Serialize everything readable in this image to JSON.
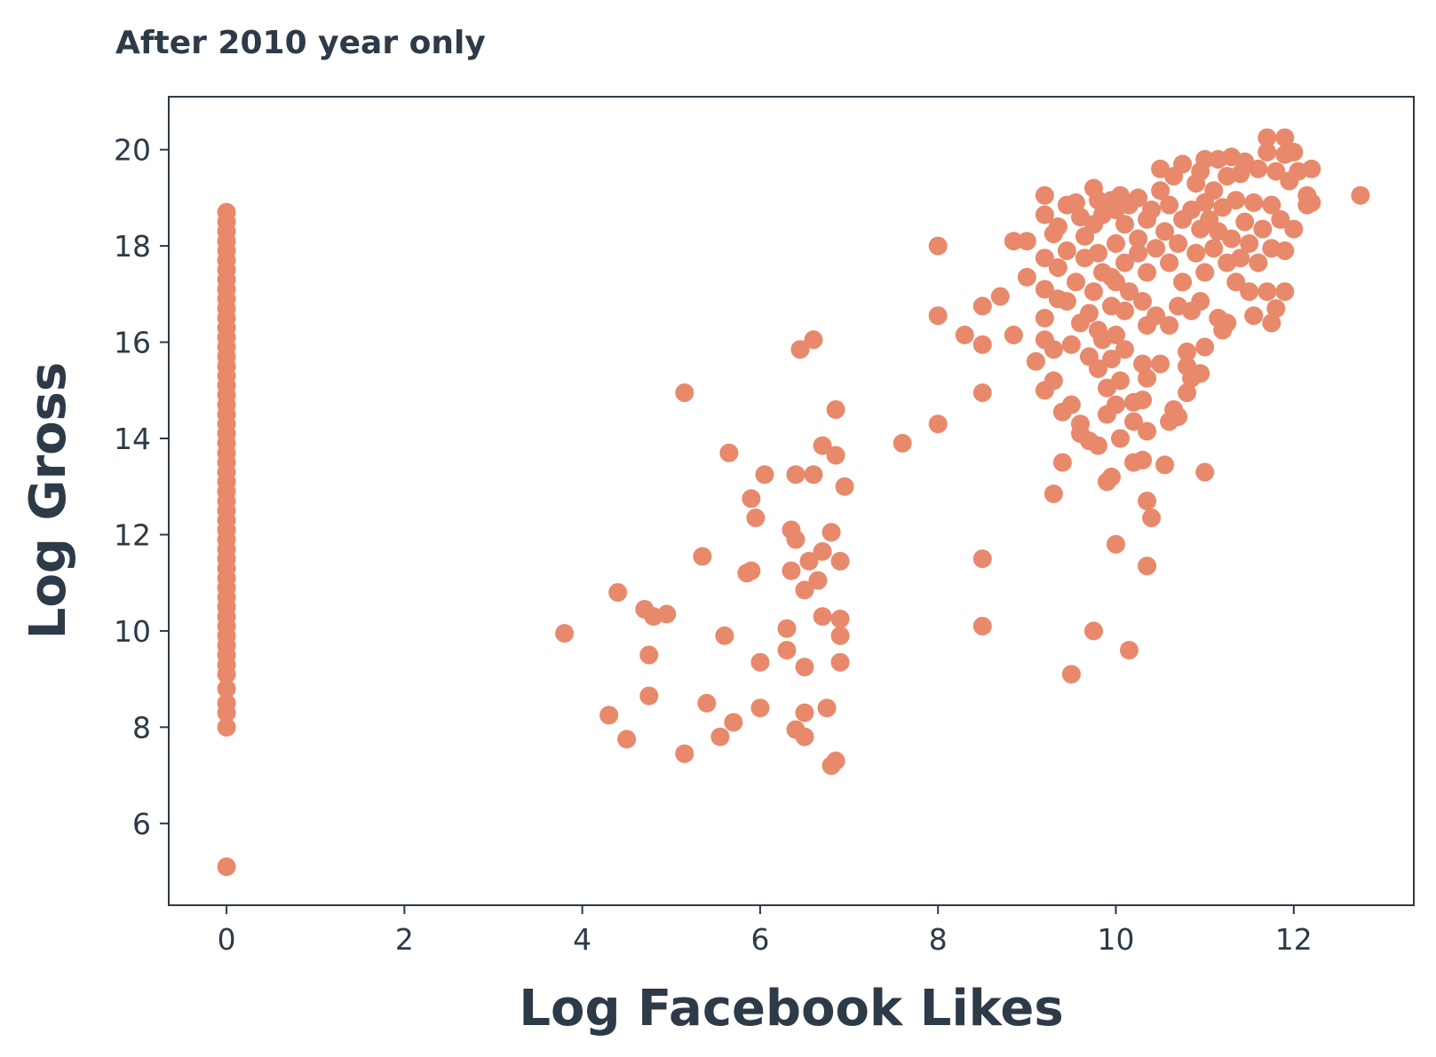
{
  "chart_data": {
    "type": "scatter",
    "title": "After 2010 year only",
    "xlabel": "Log Facebook Likes",
    "ylabel": "Log Gross",
    "xlim": [
      -0.65,
      13.35
    ],
    "ylim": [
      4.3,
      21.1
    ],
    "xticks": [
      0,
      2,
      4,
      6,
      8,
      10,
      12
    ],
    "yticks": [
      6,
      8,
      10,
      12,
      14,
      16,
      18,
      20
    ],
    "grid": false,
    "legend": "none",
    "marker_color": "#e8896b",
    "series": [
      {
        "points": [
          [
            0,
            18.7
          ],
          [
            0,
            18.5
          ],
          [
            0,
            18.3
          ],
          [
            0,
            18.1
          ],
          [
            0,
            17.9
          ],
          [
            0,
            17.7
          ],
          [
            0,
            17.5
          ],
          [
            0,
            17.3
          ],
          [
            0,
            17.1
          ],
          [
            0,
            16.9
          ],
          [
            0,
            16.7
          ],
          [
            0,
            16.5
          ],
          [
            0,
            16.3
          ],
          [
            0,
            16.1
          ],
          [
            0,
            15.9
          ],
          [
            0,
            15.7
          ],
          [
            0,
            15.5
          ],
          [
            0,
            15.3
          ],
          [
            0,
            15.1
          ],
          [
            0,
            14.9
          ],
          [
            0,
            14.7
          ],
          [
            0,
            14.5
          ],
          [
            0,
            14.3
          ],
          [
            0,
            14.1
          ],
          [
            0,
            13.9
          ],
          [
            0,
            13.7
          ],
          [
            0,
            13.5
          ],
          [
            0,
            13.3
          ],
          [
            0,
            13.1
          ],
          [
            0,
            12.9
          ],
          [
            0,
            12.7
          ],
          [
            0,
            12.5
          ],
          [
            0,
            12.3
          ],
          [
            0,
            12.1
          ],
          [
            0,
            11.9
          ],
          [
            0,
            11.7
          ],
          [
            0,
            11.5
          ],
          [
            0,
            11.3
          ],
          [
            0,
            11.1
          ],
          [
            0,
            10.9
          ],
          [
            0,
            10.7
          ],
          [
            0,
            10.5
          ],
          [
            0,
            10.3
          ],
          [
            0,
            10.1
          ],
          [
            0,
            9.9
          ],
          [
            0,
            9.7
          ],
          [
            0,
            9.5
          ],
          [
            0,
            9.3
          ],
          [
            0,
            9.1
          ],
          [
            0,
            8.8
          ],
          [
            0,
            8.5
          ],
          [
            0,
            8.3
          ],
          [
            0,
            8.0
          ],
          [
            0,
            5.1
          ],
          [
            3.8,
            9.95
          ],
          [
            4.3,
            8.25
          ],
          [
            4.4,
            10.8
          ],
          [
            4.5,
            7.75
          ],
          [
            4.7,
            10.45
          ],
          [
            4.75,
            9.5
          ],
          [
            4.75,
            8.65
          ],
          [
            4.8,
            10.3
          ],
          [
            4.95,
            10.35
          ],
          [
            5.15,
            14.95
          ],
          [
            5.15,
            7.45
          ],
          [
            5.35,
            11.55
          ],
          [
            5.4,
            8.5
          ],
          [
            5.55,
            7.8
          ],
          [
            5.6,
            9.9
          ],
          [
            5.65,
            13.7
          ],
          [
            5.7,
            8.1
          ],
          [
            5.85,
            11.2
          ],
          [
            5.9,
            11.25
          ],
          [
            5.9,
            12.75
          ],
          [
            5.95,
            12.35
          ],
          [
            6.0,
            9.35
          ],
          [
            6.0,
            8.4
          ],
          [
            6.05,
            13.25
          ],
          [
            6.3,
            10.05
          ],
          [
            6.3,
            9.6
          ],
          [
            6.35,
            12.1
          ],
          [
            6.35,
            11.25
          ],
          [
            6.4,
            11.9
          ],
          [
            6.4,
            13.25
          ],
          [
            6.4,
            7.95
          ],
          [
            6.45,
            15.85
          ],
          [
            6.5,
            8.3
          ],
          [
            6.5,
            7.8
          ],
          [
            6.5,
            9.25
          ],
          [
            6.5,
            10.85
          ],
          [
            6.55,
            11.45
          ],
          [
            6.6,
            13.25
          ],
          [
            6.6,
            16.05
          ],
          [
            6.65,
            11.05
          ],
          [
            6.7,
            11.65
          ],
          [
            6.7,
            10.3
          ],
          [
            6.7,
            13.85
          ],
          [
            6.75,
            8.4
          ],
          [
            6.8,
            12.05
          ],
          [
            6.8,
            7.2
          ],
          [
            6.85,
            7.3
          ],
          [
            6.85,
            13.65
          ],
          [
            6.85,
            14.6
          ],
          [
            6.9,
            9.9
          ],
          [
            6.9,
            10.25
          ],
          [
            6.9,
            11.45
          ],
          [
            6.9,
            9.35
          ],
          [
            6.95,
            13.0
          ],
          [
            7.6,
            13.9
          ],
          [
            8.0,
            18.0
          ],
          [
            8.0,
            16.55
          ],
          [
            8.0,
            14.3
          ],
          [
            8.3,
            16.15
          ],
          [
            8.5,
            16.75
          ],
          [
            8.5,
            15.95
          ],
          [
            8.5,
            14.95
          ],
          [
            8.5,
            11.5
          ],
          [
            8.5,
            10.1
          ],
          [
            8.7,
            16.95
          ],
          [
            8.85,
            18.1
          ],
          [
            8.85,
            16.15
          ],
          [
            9.0,
            18.1
          ],
          [
            9.0,
            17.35
          ],
          [
            9.1,
            15.6
          ],
          [
            9.2,
            19.05
          ],
          [
            9.2,
            18.65
          ],
          [
            9.2,
            17.75
          ],
          [
            9.2,
            17.1
          ],
          [
            9.2,
            16.5
          ],
          [
            9.2,
            16.05
          ],
          [
            9.2,
            15.0
          ],
          [
            9.3,
            18.25
          ],
          [
            9.3,
            15.85
          ],
          [
            9.3,
            15.2
          ],
          [
            9.3,
            12.85
          ],
          [
            9.35,
            18.4
          ],
          [
            9.35,
            17.55
          ],
          [
            9.35,
            16.9
          ],
          [
            9.4,
            14.55
          ],
          [
            9.4,
            13.5
          ],
          [
            9.45,
            18.85
          ],
          [
            9.45,
            17.9
          ],
          [
            9.45,
            16.85
          ],
          [
            9.5,
            15.95
          ],
          [
            9.5,
            14.7
          ],
          [
            9.5,
            9.1
          ],
          [
            9.55,
            18.9
          ],
          [
            9.55,
            17.25
          ],
          [
            9.6,
            18.6
          ],
          [
            9.6,
            16.4
          ],
          [
            9.6,
            14.3
          ],
          [
            9.6,
            14.1
          ],
          [
            9.65,
            18.2
          ],
          [
            9.65,
            17.75
          ],
          [
            9.7,
            16.6
          ],
          [
            9.7,
            15.7
          ],
          [
            9.7,
            13.95
          ],
          [
            9.75,
            19.2
          ],
          [
            9.75,
            18.45
          ],
          [
            9.75,
            17.05
          ],
          [
            9.75,
            10.0
          ],
          [
            9.8,
            18.95
          ],
          [
            9.8,
            17.85
          ],
          [
            9.8,
            16.25
          ],
          [
            9.8,
            15.45
          ],
          [
            9.8,
            13.85
          ],
          [
            9.85,
            18.65
          ],
          [
            9.85,
            17.45
          ],
          [
            9.85,
            16.05
          ],
          [
            9.9,
            15.05
          ],
          [
            9.9,
            13.1
          ],
          [
            9.9,
            14.5
          ],
          [
            9.95,
            18.95
          ],
          [
            9.95,
            17.35
          ],
          [
            9.95,
            16.75
          ],
          [
            9.95,
            15.65
          ],
          [
            9.95,
            13.2
          ],
          [
            10.0,
            18.75
          ],
          [
            10.0,
            18.05
          ],
          [
            10.0,
            17.25
          ],
          [
            10.0,
            16.15
          ],
          [
            10.0,
            14.7
          ],
          [
            10.0,
            11.8
          ],
          [
            10.05,
            19.05
          ],
          [
            10.05,
            15.2
          ],
          [
            10.05,
            14.0
          ],
          [
            10.1,
            18.45
          ],
          [
            10.1,
            17.65
          ],
          [
            10.1,
            16.65
          ],
          [
            10.1,
            15.85
          ],
          [
            10.15,
            18.85
          ],
          [
            10.15,
            17.05
          ],
          [
            10.15,
            9.6
          ],
          [
            10.2,
            14.75
          ],
          [
            10.2,
            14.35
          ],
          [
            10.2,
            13.5
          ],
          [
            10.25,
            19.0
          ],
          [
            10.25,
            18.15
          ],
          [
            10.25,
            17.85
          ],
          [
            10.3,
            16.85
          ],
          [
            10.3,
            15.55
          ],
          [
            10.3,
            14.8
          ],
          [
            10.3,
            13.55
          ],
          [
            10.35,
            18.55
          ],
          [
            10.35,
            17.45
          ],
          [
            10.35,
            16.35
          ],
          [
            10.35,
            15.25
          ],
          [
            10.35,
            14.15
          ],
          [
            10.35,
            12.7
          ],
          [
            10.35,
            11.35
          ],
          [
            10.4,
            18.75
          ],
          [
            10.4,
            12.35
          ],
          [
            10.45,
            17.95
          ],
          [
            10.45,
            16.55
          ],
          [
            10.5,
            19.6
          ],
          [
            10.5,
            19.15
          ],
          [
            10.5,
            15.55
          ],
          [
            10.55,
            18.3
          ],
          [
            10.55,
            13.45
          ],
          [
            10.6,
            18.85
          ],
          [
            10.6,
            17.65
          ],
          [
            10.6,
            16.35
          ],
          [
            10.6,
            14.35
          ],
          [
            10.65,
            19.45
          ],
          [
            10.65,
            14.6
          ],
          [
            10.7,
            18.05
          ],
          [
            10.7,
            16.75
          ],
          [
            10.7,
            14.45
          ],
          [
            10.75,
            19.7
          ],
          [
            10.75,
            18.55
          ],
          [
            10.75,
            17.25
          ],
          [
            10.8,
            15.8
          ],
          [
            10.8,
            15.5
          ],
          [
            10.8,
            14.95
          ],
          [
            10.85,
            18.75
          ],
          [
            10.85,
            16.65
          ],
          [
            10.85,
            15.25
          ],
          [
            10.9,
            19.3
          ],
          [
            10.9,
            17.85
          ],
          [
            10.95,
            19.55
          ],
          [
            10.95,
            18.35
          ],
          [
            10.95,
            16.85
          ],
          [
            10.95,
            15.35
          ],
          [
            11.0,
            19.8
          ],
          [
            11.0,
            18.9
          ],
          [
            11.0,
            17.45
          ],
          [
            11.0,
            15.9
          ],
          [
            11.0,
            13.3
          ],
          [
            11.05,
            18.55
          ],
          [
            11.1,
            19.15
          ],
          [
            11.1,
            17.95
          ],
          [
            11.15,
            19.8
          ],
          [
            11.15,
            18.3
          ],
          [
            11.15,
            16.5
          ],
          [
            11.2,
            18.8
          ],
          [
            11.2,
            16.25
          ],
          [
            11.25,
            19.45
          ],
          [
            11.25,
            17.65
          ],
          [
            11.25,
            16.4
          ],
          [
            11.3,
            19.85
          ],
          [
            11.3,
            18.15
          ],
          [
            11.35,
            18.95
          ],
          [
            11.35,
            17.25
          ],
          [
            11.4,
            19.5
          ],
          [
            11.4,
            17.75
          ],
          [
            11.45,
            19.75
          ],
          [
            11.45,
            18.5
          ],
          [
            11.5,
            18.05
          ],
          [
            11.5,
            17.05
          ],
          [
            11.55,
            18.9
          ],
          [
            11.55,
            16.55
          ],
          [
            11.6,
            19.6
          ],
          [
            11.6,
            17.65
          ],
          [
            11.65,
            18.35
          ],
          [
            11.7,
            20.25
          ],
          [
            11.7,
            19.95
          ],
          [
            11.7,
            17.05
          ],
          [
            11.75,
            18.85
          ],
          [
            11.75,
            17.95
          ],
          [
            11.75,
            16.4
          ],
          [
            11.8,
            19.55
          ],
          [
            11.8,
            16.7
          ],
          [
            11.85,
            18.55
          ],
          [
            11.9,
            20.25
          ],
          [
            11.9,
            19.9
          ],
          [
            11.9,
            17.9
          ],
          [
            11.9,
            17.05
          ],
          [
            11.95,
            19.35
          ],
          [
            12.0,
            19.95
          ],
          [
            12.0,
            18.35
          ],
          [
            12.05,
            19.55
          ],
          [
            12.15,
            19.05
          ],
          [
            12.15,
            18.85
          ],
          [
            12.2,
            19.6
          ],
          [
            12.2,
            18.9
          ],
          [
            12.75,
            19.05
          ]
        ]
      }
    ]
  }
}
